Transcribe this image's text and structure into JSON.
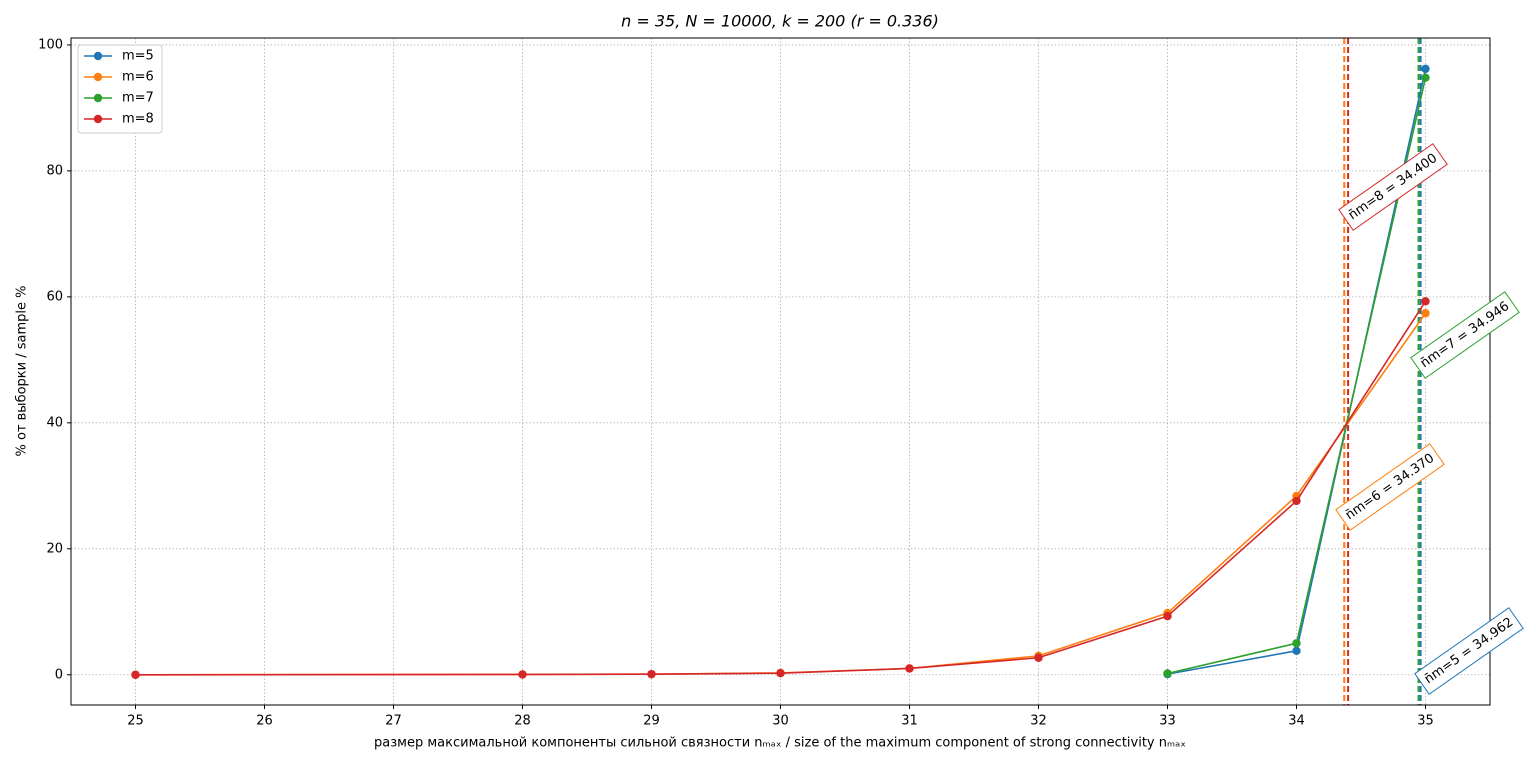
{
  "chart_data": {
    "type": "line",
    "title": "n = 35, N = 10000, k = 200 (r = 0.336)",
    "x_label": "размер максимальной компоненты сильной связности nₘₐₓ / size of the maximum component of strong connectivity nₘₐₓ",
    "y_label": "% от выборки / sample %",
    "series": [
      {
        "name": "m=5",
        "color": "#1f77b4",
        "x": [
          33,
          34,
          35
        ],
        "values": [
          0.1,
          3.8,
          96.2
        ]
      },
      {
        "name": "m=6",
        "color": "#ff7f0e",
        "x": [
          25,
          28,
          29,
          30,
          31,
          32,
          33,
          34,
          35
        ],
        "values": [
          0,
          0.05,
          0.1,
          0.3,
          1.0,
          3.0,
          9.8,
          28.4,
          57.4
        ]
      },
      {
        "name": "m=7",
        "color": "#2ca02c",
        "x": [
          33,
          34,
          35
        ],
        "values": [
          0.2,
          5.0,
          94.8
        ]
      },
      {
        "name": "m=8",
        "color": "#d62728",
        "x": [
          25,
          28,
          29,
          30,
          31,
          32,
          33,
          34,
          35
        ],
        "values": [
          0,
          0.05,
          0.1,
          0.25,
          1.0,
          2.7,
          9.3,
          27.6,
          59.3
        ]
      }
    ],
    "markers": [
      {
        "value": 34.962,
        "label": "n̄m=5 = 34.962",
        "color": "#1f77b4"
      },
      {
        "value": 34.37,
        "label": "n̄m=6 = 34.370",
        "color": "#ff7f0e"
      },
      {
        "value": 34.946,
        "label": "n̄m=7 = 34.946",
        "color": "#2ca02c"
      },
      {
        "value": 34.4,
        "label": "n̄m=8 = 34.400",
        "color": "#d62728"
      }
    ],
    "xlim": [
      24.5,
      35.5
    ],
    "xticks": [
      25,
      26,
      27,
      28,
      29,
      30,
      31,
      32,
      33,
      34,
      35
    ],
    "ylim": [
      -4.8,
      101.1
    ],
    "yticks": [
      0,
      20,
      40,
      60,
      80,
      100
    ],
    "grid": true,
    "legend": "upper left"
  }
}
